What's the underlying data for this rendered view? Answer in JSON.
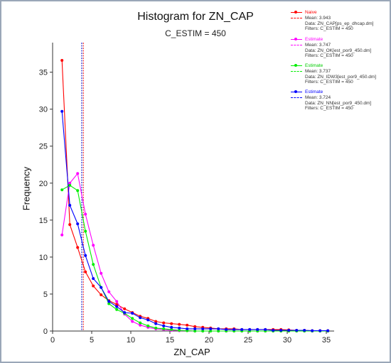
{
  "chart_data": {
    "type": "line",
    "title": "Histogram for ZN_CAP",
    "subtitle": "C_ESTIM = 450",
    "xlabel": "ZN_CAP",
    "ylabel": "Frequency",
    "xlim": [
      0,
      36
    ],
    "ylim": [
      0,
      39
    ],
    "x_ticks": [
      0,
      5,
      10,
      15,
      20,
      25,
      30,
      35
    ],
    "y_ticks": [
      0,
      5,
      10,
      15,
      20,
      25,
      30,
      35
    ],
    "grid": false,
    "legend_position": "top-right",
    "x": [
      1.2,
      2.2,
      3.2,
      4.2,
      5.2,
      6.2,
      7.2,
      8.2,
      9.2,
      10.2,
      11.2,
      12.2,
      13.2,
      14.2,
      15.2,
      16.2,
      17.2,
      18.2,
      19.2,
      20.2,
      21.2,
      22.2,
      23.2,
      24.2,
      25.2,
      26.2,
      27.2,
      28.2,
      29.2,
      30.2,
      31.2,
      32.2,
      33.2,
      34.2,
      35.2
    ],
    "series": [
      {
        "name": "Naive",
        "color": "#ff0000",
        "mean": 3.943,
        "values": [
          36.6,
          14.4,
          11.3,
          8.0,
          6.1,
          4.9,
          4.1,
          3.6,
          3.0,
          2.5,
          2.0,
          1.7,
          1.3,
          1.1,
          1.0,
          0.9,
          0.8,
          0.6,
          0.5,
          0.4,
          0.3,
          0.3,
          0.3,
          0.2,
          0.2,
          0.2,
          0.2,
          0.2,
          0.2,
          0.15,
          0.1,
          0.1,
          0.05,
          0.05,
          0.05
        ]
      },
      {
        "name": "Estimate",
        "color": "#ff00ff",
        "mean": 3.747,
        "values": [
          13.0,
          20.0,
          21.3,
          15.8,
          11.6,
          7.8,
          5.3,
          4.0,
          2.3,
          1.3,
          0.8,
          0.5,
          0.3,
          0.2,
          0.1,
          0.05,
          0.05,
          0,
          0,
          0,
          0,
          0,
          0,
          0,
          0,
          0,
          0,
          0,
          0,
          0,
          0,
          0,
          0,
          0,
          0
        ]
      },
      {
        "name": "Estimate",
        "color": "#00ee00",
        "mean": 3.737,
        "values": [
          19.1,
          19.7,
          19.0,
          13.5,
          9.0,
          5.9,
          3.7,
          2.9,
          2.4,
          1.7,
          1.1,
          0.7,
          0.4,
          0.3,
          0.2,
          0.1,
          0.05,
          0,
          0,
          0,
          0,
          0,
          0,
          0,
          0,
          0,
          0,
          0,
          0,
          0,
          0,
          0,
          0,
          0,
          0
        ]
      },
      {
        "name": "Estimate",
        "color": "#0000ff",
        "mean": 3.724,
        "values": [
          29.7,
          17.0,
          14.5,
          10.2,
          7.1,
          5.9,
          4.0,
          3.3,
          2.5,
          2.4,
          1.8,
          1.5,
          1.0,
          0.7,
          0.5,
          0.4,
          0.3,
          0.3,
          0.3,
          0.3,
          0.3,
          0.2,
          0.2,
          0.2,
          0.2,
          0.2,
          0.2,
          0.1,
          0.1,
          0.1,
          0.1,
          0.1,
          0.05,
          0.05,
          0.05
        ]
      }
    ]
  },
  "legend": [
    {
      "name": "Naive",
      "color": "#ff0000",
      "mean": "Mean: 3.943",
      "data": "Data: ZN_CAP[ps_ep_dhcap.dm]",
      "filters": "Filters: C_ESTIM = 450"
    },
    {
      "name": "Estimate",
      "color": "#ff00ff",
      "mean": "Mean: 3.747",
      "data": "Data: ZN_OK[est_por9_450.dm]",
      "filters": "Filters: C_ESTIM = 450"
    },
    {
      "name": "Estimate",
      "color": "#00ee00",
      "mean": "Mean: 3.737",
      "data": "Data: ZN_IDW3[est_por9_450.dm]",
      "filters": "Filters: C_ESTIM = 450"
    },
    {
      "name": "Estimate",
      "color": "#0000ff",
      "mean": "Mean: 3.724",
      "data": "Data: ZN_NN[est_por9_450.dm]",
      "filters": "Filters: C_ESTIM = 450"
    }
  ]
}
